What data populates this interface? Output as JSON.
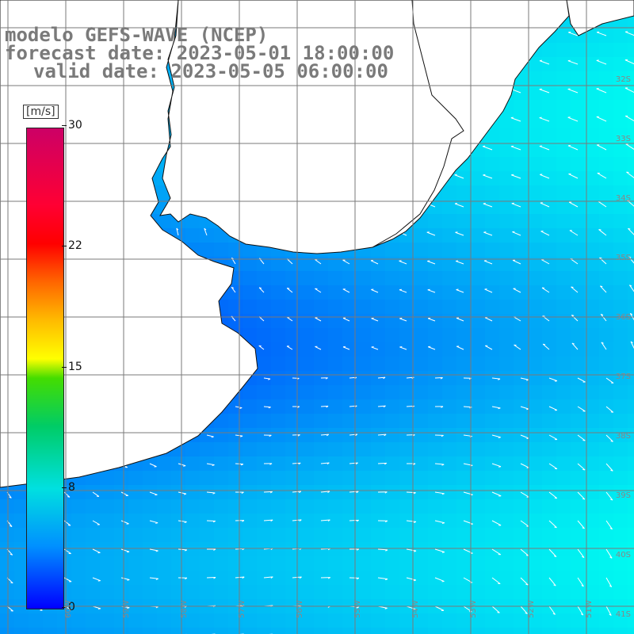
{
  "title": {
    "line1": "modelo GEFS-WAVE (NCEP)",
    "line2": "forecast date: 2023-05-01 18:00:00",
    "line3": "valid date: 2023-05-05 06:00:00"
  },
  "colorbar": {
    "unit": "[m/s]",
    "ticks": [
      "30",
      "22",
      "15",
      "8",
      "0"
    ],
    "colors": [
      "#0000ff",
      "#0090ff",
      "#00e0e0",
      "#00cc66",
      "#44dd00",
      "#ffff00",
      "#ffbb00",
      "#ff6600",
      "#ff0000",
      "#cc0066"
    ]
  },
  "lat_labels": [
    "32S",
    "33S",
    "34S",
    "35S",
    "36S",
    "37S",
    "38S",
    "39S",
    "40S",
    "41S"
  ],
  "lon_labels": [
    "60W",
    "59W",
    "58W",
    "57W",
    "56W",
    "55W",
    "54W",
    "53W",
    "52W",
    "51W"
  ],
  "colors": {
    "land": "#ffffff",
    "coast": "#111111",
    "grid": "#7a7a7a",
    "arrow": "#ffffff",
    "title": "#7a7a7a"
  }
}
